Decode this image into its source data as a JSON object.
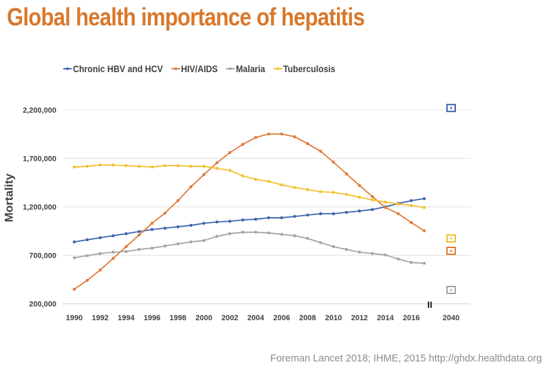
{
  "title": "Global health importance of hepatitis",
  "source": "Foreman Lancet 2018; IHME, 2015 http://ghdx.healthdata.org",
  "chart_data": {
    "type": "line",
    "title": "Global health importance of hepatitis",
    "xlabel": "",
    "ylabel": "Mortality",
    "ylim": [
      200000,
      2200000
    ],
    "yticks": [
      200000,
      700000,
      1200000,
      1700000,
      2200000
    ],
    "ytick_labels": [
      "200,000",
      "700,000",
      "1,200,000",
      "1,700,000",
      "2,200,000"
    ],
    "x": [
      1990,
      1991,
      1992,
      1993,
      1994,
      1995,
      1996,
      1997,
      1998,
      1999,
      2000,
      2001,
      2002,
      2003,
      2004,
      2005,
      2006,
      2007,
      2008,
      2009,
      2010,
      2011,
      2012,
      2013,
      2014,
      2015,
      2016,
      2017
    ],
    "xtick_labels": [
      "1990",
      "1992",
      "1994",
      "1996",
      "1998",
      "2000",
      "2002",
      "2004",
      "2006",
      "2008",
      "2010",
      "2012",
      "2014",
      "2016",
      "2040"
    ],
    "grid": true,
    "legend_position": "top",
    "axis_break": "II",
    "projection_year": 2040,
    "series": [
      {
        "name": "Chronic HBV and HCV",
        "color": "#3F66AE",
        "values": [
          838000,
          860000,
          881000,
          902000,
          923000,
          945000,
          966000,
          980000,
          994000,
          1009000,
          1030000,
          1044000,
          1051000,
          1065000,
          1072000,
          1087000,
          1087000,
          1101000,
          1115000,
          1129000,
          1129000,
          1143000,
          1157000,
          1172000,
          1200000,
          1235000,
          1264000,
          1285000
        ],
        "projection_2040": 2220000
      },
      {
        "name": "HIV/AIDS",
        "color": "#E07B39",
        "values": [
          349000,
          441000,
          548000,
          668000,
          789000,
          909000,
          1030000,
          1136000,
          1264000,
          1406000,
          1533000,
          1654000,
          1760000,
          1845000,
          1916000,
          1952000,
          1952000,
          1923000,
          1852000,
          1774000,
          1661000,
          1540000,
          1420000,
          1306000,
          1193000,
          1129000,
          1037000,
          952000
        ],
        "projection_2040": 746000
      },
      {
        "name": "Malaria",
        "color": "#A5A5A5",
        "values": [
          675000,
          696000,
          718000,
          732000,
          739000,
          760000,
          774000,
          796000,
          817000,
          838000,
          852000,
          895000,
          923000,
          938000,
          938000,
          931000,
          916000,
          902000,
          874000,
          831000,
          789000,
          760000,
          732000,
          718000,
          704000,
          661000,
          626000,
          618000
        ],
        "projection_2040": 342000
      },
      {
        "name": "Tuberculosis",
        "color": "#F2C12E",
        "values": [
          1611000,
          1618000,
          1632000,
          1632000,
          1625000,
          1618000,
          1611000,
          1625000,
          1625000,
          1618000,
          1618000,
          1597000,
          1576000,
          1519000,
          1484000,
          1462000,
          1427000,
          1399000,
          1378000,
          1356000,
          1349000,
          1328000,
          1299000,
          1271000,
          1250000,
          1229000,
          1214000,
          1193000
        ],
        "projection_2040": 874000
      }
    ]
  }
}
